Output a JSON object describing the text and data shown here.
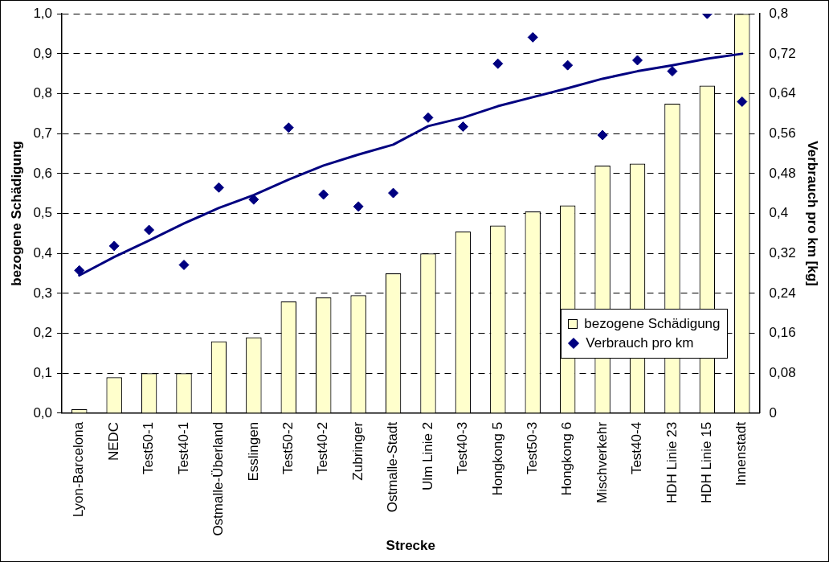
{
  "chart_data": {
    "type": "bar",
    "xlabel": "Strecke",
    "ylabel": "bezogene Schädigung",
    "y2label": "Verbrauch pro km [kg]",
    "categories": [
      "Lyon-Barcelona",
      "NEDC",
      "Test50-1",
      "Test40-1",
      "Ostmalle-Überland",
      "Esslingen",
      "Test50-2",
      "Test40-2",
      "Zubringer",
      "Ostmalle-Stadt",
      "Ulm Linie 2",
      "Test40-3",
      "Hongkong 5",
      "Test50-3",
      "Hongkong 6",
      "Mischverkehr",
      "Test40-4",
      "HDH Linie 23",
      "HDH Linie 15",
      "Innenstadt"
    ],
    "series": [
      {
        "name": "bezogene Schädigung",
        "color": "#ffffcc",
        "values": [
          0.01,
          0.09,
          0.1,
          0.1,
          0.18,
          0.19,
          0.28,
          0.29,
          0.295,
          0.35,
          0.4,
          0.455,
          0.47,
          0.505,
          0.52,
          0.62,
          0.625,
          0.775,
          0.82,
          1.0
        ]
      },
      {
        "name": "Verbrauch pro km",
        "type": "scatter",
        "axis": "y2",
        "color": "#000080",
        "marker": "diamond",
        "values": [
          0.286,
          0.335,
          0.367,
          0.297,
          0.452,
          0.428,
          0.572,
          0.438,
          0.414,
          0.441,
          0.592,
          0.574,
          0.7,
          0.753,
          0.697,
          0.557,
          0.707,
          0.685,
          0.8,
          0.624
        ]
      },
      {
        "type": "line",
        "axis": "y2",
        "color": "#000080",
        "values": [
          0.276,
          0.313,
          0.346,
          0.38,
          0.411,
          0.437,
          0.468,
          0.496,
          0.518,
          0.538,
          0.575,
          0.592,
          0.615,
          0.633,
          0.651,
          0.67,
          0.685,
          0.697,
          0.71,
          0.72
        ]
      }
    ],
    "ylim": [
      0,
      1
    ],
    "yticks": [
      {
        "value": 0,
        "label": "0,0"
      },
      {
        "value": 0.1,
        "label": "0,1"
      },
      {
        "value": 0.2,
        "label": "0,2"
      },
      {
        "value": 0.3,
        "label": "0,3"
      },
      {
        "value": 0.4,
        "label": "0,4"
      },
      {
        "value": 0.5,
        "label": "0,5"
      },
      {
        "value": 0.6,
        "label": "0,6"
      },
      {
        "value": 0.7,
        "label": "0,7"
      },
      {
        "value": 0.8,
        "label": "0,8"
      },
      {
        "value": 0.9,
        "label": "0,9"
      },
      {
        "value": 1,
        "label": "1,0"
      }
    ],
    "y2lim": [
      0,
      0.8
    ],
    "y2ticks": [
      0,
      {
        "value": 0.08,
        "label": "0,08"
      },
      {
        "value": 0.16,
        "label": "0,16"
      },
      {
        "value": 0.24,
        "label": "0,24"
      },
      {
        "value": 0.32,
        "label": "0,32"
      },
      {
        "value": 0.4,
        "label": "0,4"
      },
      {
        "value": 0.48,
        "label": "0,48"
      },
      {
        "value": 0.56,
        "label": "0,56"
      },
      {
        "value": 0.64,
        "label": "0,64"
      },
      {
        "value": 0.72,
        "label": "0,72"
      },
      {
        "value": 0.8,
        "label": "0,8"
      }
    ],
    "grid": "y",
    "legend": "bottom right"
  }
}
